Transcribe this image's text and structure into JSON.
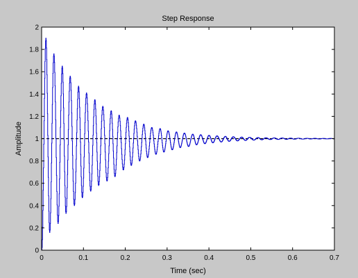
{
  "chart_data": {
    "type": "line",
    "title": "Step Response",
    "xlabel": "Time (sec)",
    "ylabel": "Amplitude",
    "xlim": [
      0,
      0.7
    ],
    "ylim": [
      0,
      2
    ],
    "x_ticks": [
      "0",
      "0.1",
      "0.2",
      "0.3",
      "0.4",
      "0.5",
      "0.6",
      "0.7"
    ],
    "y_ticks": [
      "0",
      "0.2",
      "0.4",
      "0.6",
      "0.8",
      "1",
      "1.2",
      "1.4",
      "1.6",
      "1.8",
      "2"
    ],
    "grid": false,
    "legend": "none",
    "reference_line": {
      "y": 1,
      "style": "dashed",
      "color": "#000000"
    },
    "series": [
      {
        "color": "#0000cc",
        "line_style": "stair-step",
        "peak_maxima": [
          [
            0.01,
            1.9
          ],
          [
            0.029,
            1.76
          ],
          [
            0.049,
            1.65
          ],
          [
            0.068,
            1.56
          ],
          [
            0.088,
            1.47
          ],
          [
            0.107,
            1.41
          ],
          [
            0.127,
            1.35
          ],
          [
            0.146,
            1.29
          ],
          [
            0.166,
            1.25
          ],
          [
            0.185,
            1.21
          ],
          [
            0.205,
            1.19
          ],
          [
            0.224,
            1.16
          ],
          [
            0.244,
            1.13
          ],
          [
            0.263,
            1.1
          ],
          [
            0.283,
            1.09
          ],
          [
            0.302,
            1.07
          ],
          [
            0.322,
            1.06
          ],
          [
            0.341,
            1.05
          ],
          [
            0.361,
            1.04
          ],
          [
            0.38,
            1.035
          ],
          [
            0.4,
            1.03
          ],
          [
            0.419,
            1.025
          ],
          [
            0.439,
            1.02
          ],
          [
            0.458,
            1.017
          ],
          [
            0.478,
            1.014
          ],
          [
            0.497,
            1.012
          ],
          [
            0.517,
            1.01
          ],
          [
            0.536,
            1.008
          ],
          [
            0.556,
            1.007
          ],
          [
            0.575,
            1.006
          ],
          [
            0.595,
            1.005
          ],
          [
            0.614,
            1.004
          ],
          [
            0.634,
            1.003
          ],
          [
            0.653,
            1.003
          ],
          [
            0.673,
            1.002
          ],
          [
            0.692,
            1.002
          ]
        ],
        "trough_minima": [
          [
            0.0,
            0.0
          ],
          [
            0.019,
            0.16
          ],
          [
            0.039,
            0.24
          ],
          [
            0.058,
            0.33
          ],
          [
            0.078,
            0.4
          ],
          [
            0.097,
            0.47
          ],
          [
            0.117,
            0.53
          ],
          [
            0.136,
            0.58
          ],
          [
            0.156,
            0.62
          ],
          [
            0.175,
            0.66
          ],
          [
            0.195,
            0.72
          ],
          [
            0.214,
            0.76
          ],
          [
            0.234,
            0.8
          ],
          [
            0.253,
            0.83
          ],
          [
            0.273,
            0.86
          ],
          [
            0.292,
            0.88
          ],
          [
            0.312,
            0.9
          ],
          [
            0.331,
            0.92
          ],
          [
            0.351,
            0.93
          ],
          [
            0.37,
            0.945
          ],
          [
            0.39,
            0.955
          ],
          [
            0.409,
            0.963
          ],
          [
            0.429,
            0.97
          ],
          [
            0.448,
            0.976
          ],
          [
            0.468,
            0.98
          ],
          [
            0.487,
            0.984
          ],
          [
            0.507,
            0.987
          ],
          [
            0.526,
            0.99
          ],
          [
            0.546,
            0.992
          ],
          [
            0.565,
            0.993
          ],
          [
            0.585,
            0.994
          ],
          [
            0.604,
            0.995
          ],
          [
            0.624,
            0.996
          ],
          [
            0.643,
            0.997
          ],
          [
            0.663,
            0.997
          ],
          [
            0.682,
            0.998
          ],
          [
            0.7,
            0.998
          ]
        ]
      }
    ]
  },
  "colors": {
    "figure_background": "#c8c8c8",
    "axes_background": "#ffffff",
    "axes_border": "#000000"
  }
}
